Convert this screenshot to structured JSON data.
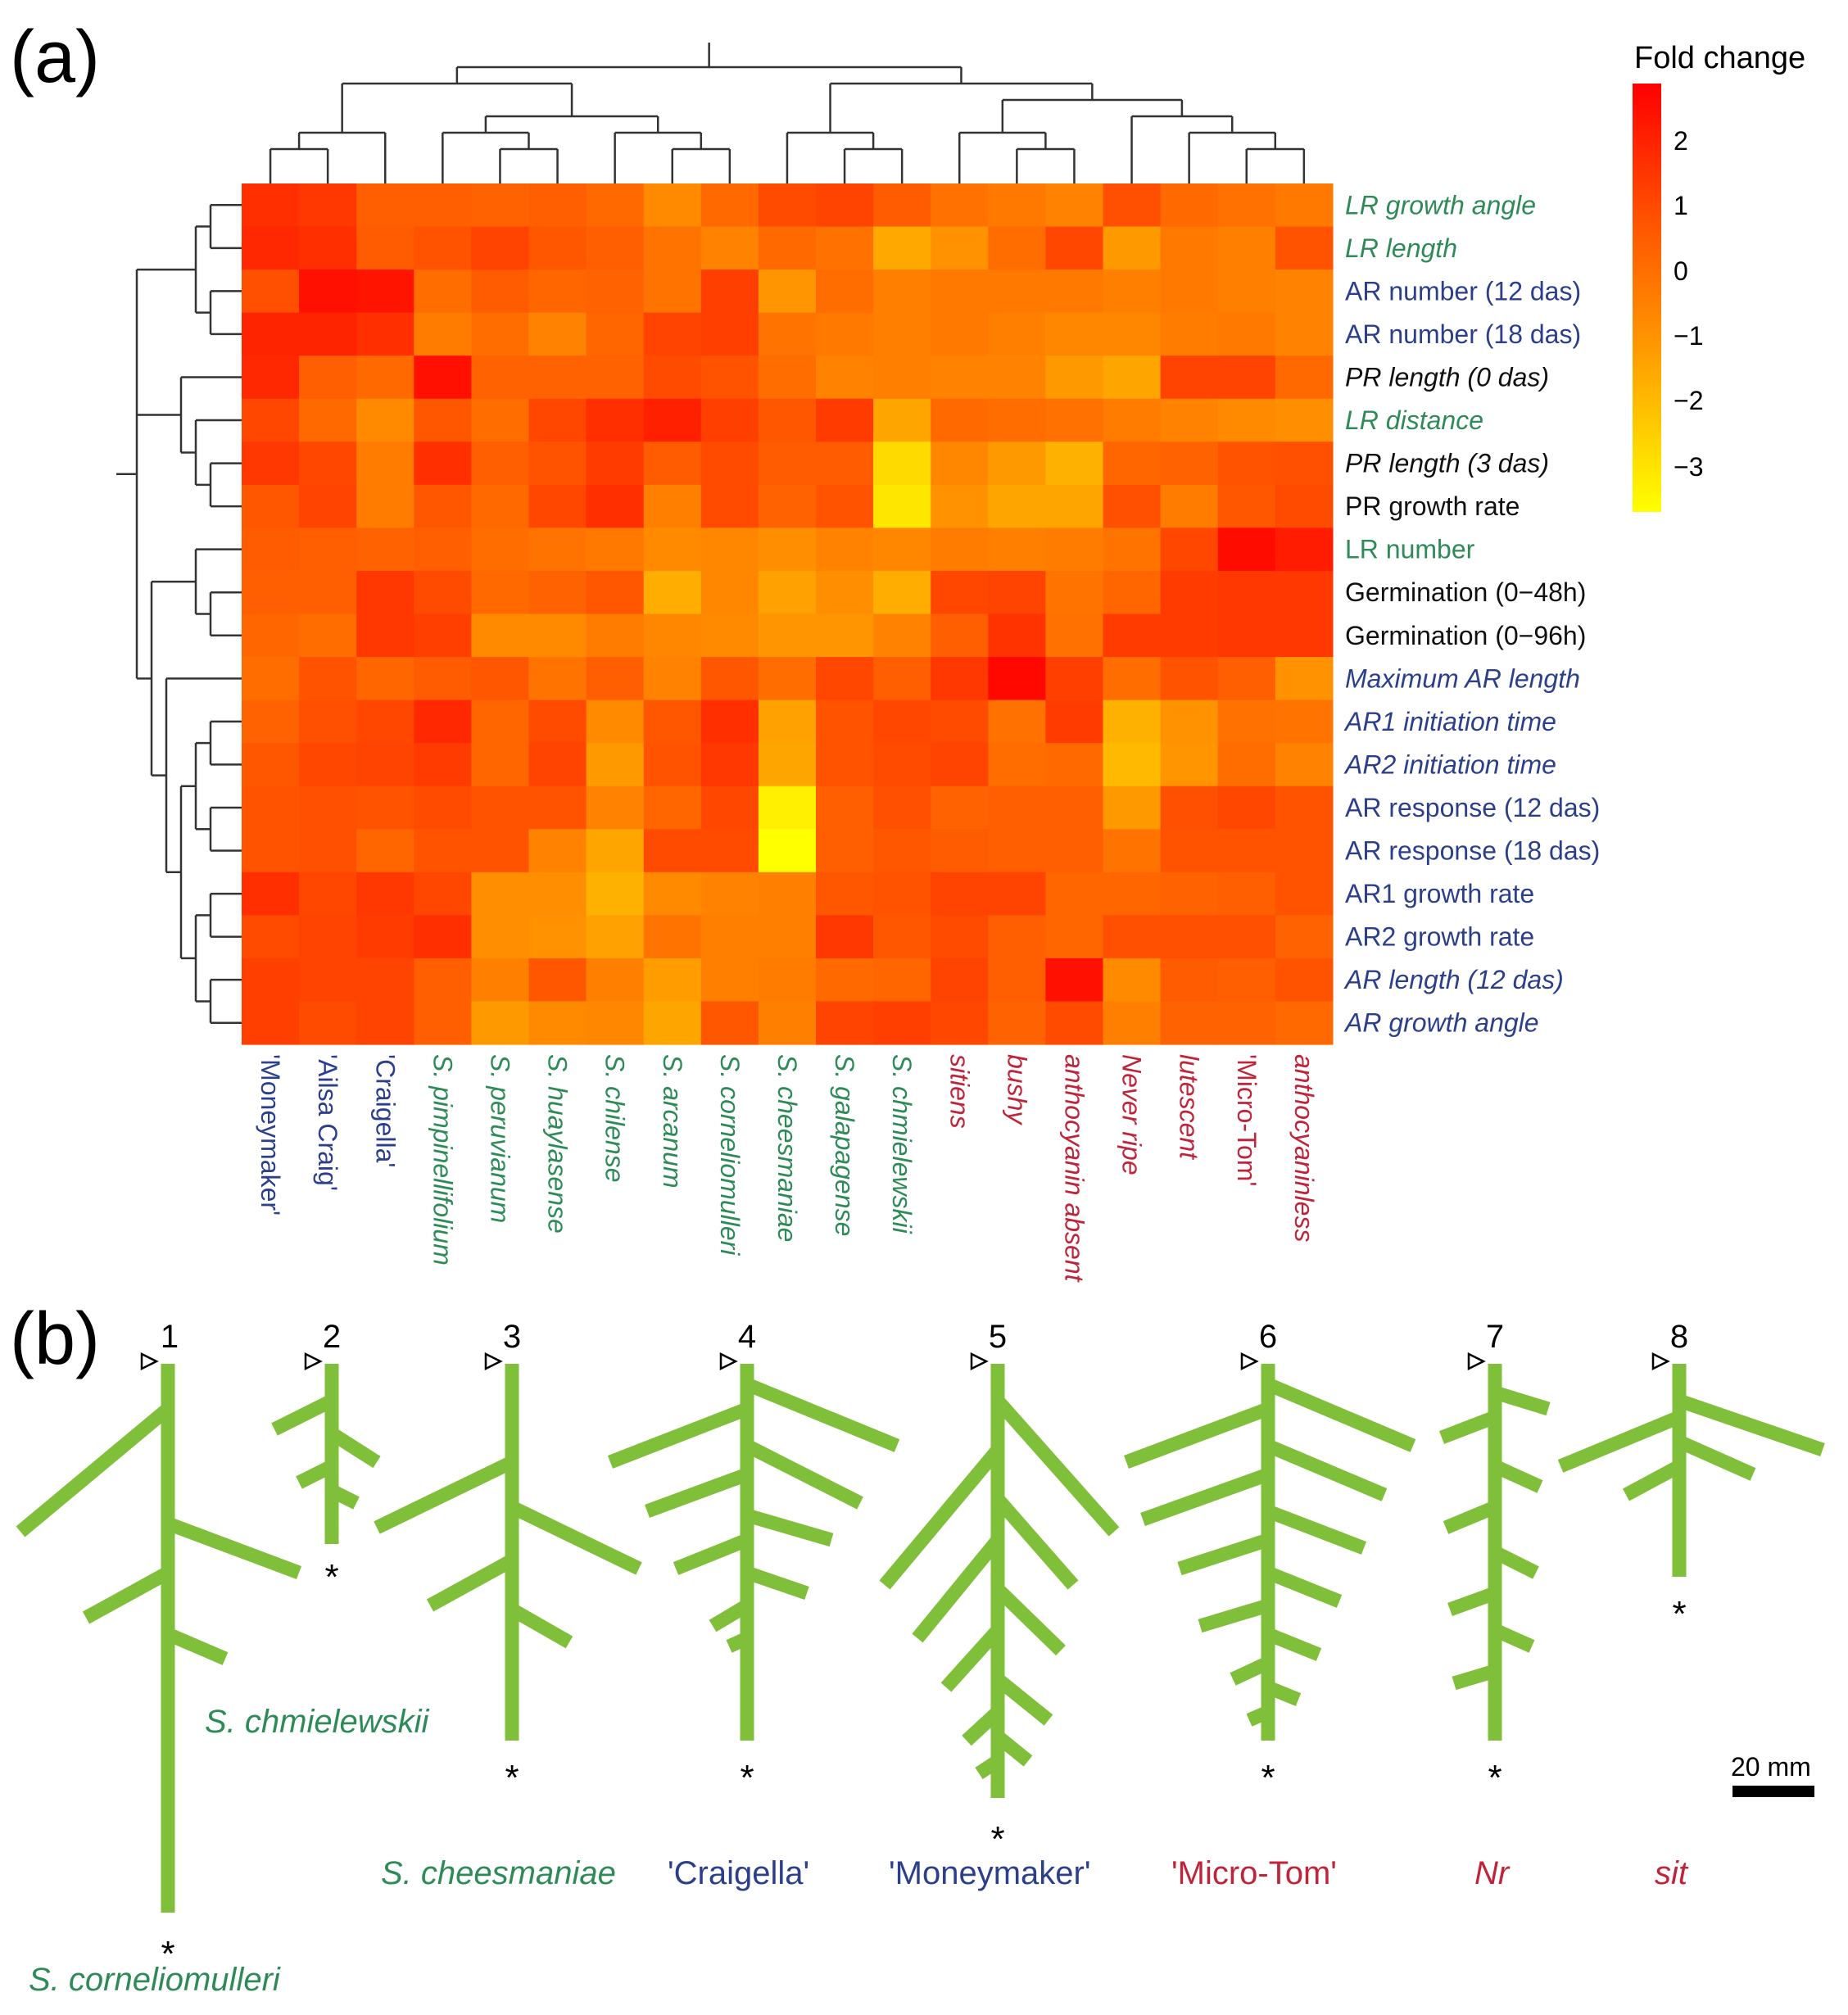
{
  "colors": {
    "wild": "#2e8b57",
    "cultivar": "#2b3f8c",
    "mutant": "#c0243a",
    "black": "#111111",
    "root": "#7fbf3a",
    "heat_low": "#ffff00",
    "heat_high": "#ff0000"
  },
  "panel_a": {
    "label": "(a)"
  },
  "panel_b": {
    "label": "(b)"
  },
  "chart_data": {
    "type": "heatmap",
    "legend": {
      "title": "Fold change",
      "ticks": [
        2,
        1,
        0,
        -1,
        -2,
        -3
      ],
      "ticks_text": [
        "2",
        "1",
        "0",
        "−1",
        "−2",
        "−3"
      ],
      "range": [
        -3.5,
        3
      ]
    },
    "rows": [
      {
        "label": "LR growth angle",
        "style": "italic",
        "color": "wild"
      },
      {
        "label": "LR length",
        "style": "italic",
        "color": "wild"
      },
      {
        "label": "AR number (12 das)",
        "style": "normal",
        "color": "cultivar"
      },
      {
        "label": "AR number (18 das)",
        "style": "normal",
        "color": "cultivar"
      },
      {
        "label": "PR length (0 das)",
        "style": "italic",
        "color": "black"
      },
      {
        "label": "LR distance",
        "style": "italic",
        "color": "wild"
      },
      {
        "label": "PR length (3 das)",
        "style": "italic",
        "color": "black"
      },
      {
        "label": "PR growth rate",
        "style": "normal",
        "color": "black"
      },
      {
        "label": "LR number",
        "style": "normal",
        "color": "wild"
      },
      {
        "label": "Germination (0−48h)",
        "style": "normal",
        "color": "black"
      },
      {
        "label": "Germination (0−96h)",
        "style": "normal",
        "color": "black"
      },
      {
        "label": "Maximum AR length",
        "style": "italic",
        "color": "cultivar"
      },
      {
        "label": "AR1 initiation time",
        "style": "italic",
        "color": "cultivar"
      },
      {
        "label": "AR2 initiation time",
        "style": "italic",
        "color": "cultivar"
      },
      {
        "label": "AR response (12 das)",
        "style": "normal",
        "color": "cultivar"
      },
      {
        "label": "AR response (18 das)",
        "style": "normal",
        "color": "cultivar"
      },
      {
        "label": "AR1 growth rate",
        "style": "normal",
        "color": "cultivar"
      },
      {
        "label": "AR2 growth rate",
        "style": "normal",
        "color": "cultivar"
      },
      {
        "label": "AR length (12 das)",
        "style": "italic",
        "color": "cultivar"
      },
      {
        "label": "AR growth angle",
        "style": "italic",
        "color": "cultivar"
      }
    ],
    "columns": [
      {
        "label": "'Moneymaker'",
        "style": "normal",
        "color": "cultivar"
      },
      {
        "label": "'Ailsa Craig'",
        "style": "normal",
        "color": "cultivar"
      },
      {
        "label": "'Craigella'",
        "style": "normal",
        "color": "cultivar"
      },
      {
        "label": "S. pimpinellifolium",
        "style": "italic",
        "color": "wild"
      },
      {
        "label": "S. peruvianum",
        "style": "italic",
        "color": "wild"
      },
      {
        "label": "S. huaylasense",
        "style": "italic",
        "color": "wild"
      },
      {
        "label": "S. chilense",
        "style": "italic",
        "color": "wild"
      },
      {
        "label": "S. arcanum",
        "style": "italic",
        "color": "wild"
      },
      {
        "label": "S. corneliomulleri",
        "style": "italic",
        "color": "wild"
      },
      {
        "label": "S. cheesmaniae",
        "style": "italic",
        "color": "wild"
      },
      {
        "label": "S. galapagense",
        "style": "italic",
        "color": "wild"
      },
      {
        "label": "S. chmielewskii",
        "style": "italic",
        "color": "wild"
      },
      {
        "label": "sitiens",
        "style": "italic",
        "color": "mutant"
      },
      {
        "label": "bushy",
        "style": "italic",
        "color": "mutant"
      },
      {
        "label": "anthocyanin absent",
        "style": "italic",
        "color": "mutant"
      },
      {
        "label": "Never ripe",
        "style": "italic",
        "color": "mutant"
      },
      {
        "label": "lutescent",
        "style": "italic",
        "color": "mutant"
      },
      {
        "label": "'Micro-Tom'",
        "style": "normal",
        "color": "mutant"
      },
      {
        "label": "anthocyaninless",
        "style": "italic",
        "color": "mutant"
      }
    ],
    "values": [
      [
        1.8,
        1.6,
        0.6,
        0.6,
        0.5,
        0.6,
        0.3,
        -0.6,
        0.3,
        1.1,
        1.3,
        0.7,
        0.1,
        -0.1,
        -0.4,
        1.0,
        0.3,
        0.1,
        -0.1
      ],
      [
        2.0,
        1.8,
        0.7,
        0.9,
        1.3,
        0.8,
        0.6,
        0.0,
        -0.4,
        0.3,
        0.1,
        -1.4,
        -0.8,
        0.2,
        1.2,
        -1.0,
        -0.1,
        -0.3,
        0.9
      ],
      [
        1.0,
        2.6,
        2.5,
        0.2,
        0.7,
        0.4,
        0.5,
        0.0,
        1.4,
        -0.9,
        0.2,
        -0.3,
        -0.1,
        -0.1,
        -0.1,
        -0.3,
        -0.1,
        -0.3,
        -0.4
      ],
      [
        2.1,
        2.1,
        1.8,
        -0.2,
        0.2,
        -0.4,
        0.4,
        1.3,
        1.4,
        0.0,
        -0.1,
        -0.3,
        -0.1,
        -0.3,
        -0.5,
        -0.5,
        -0.2,
        -0.1,
        -0.4
      ],
      [
        2.0,
        0.6,
        0.3,
        2.6,
        0.5,
        0.5,
        0.5,
        1.1,
        0.9,
        0.2,
        -0.4,
        -0.3,
        -0.4,
        -0.4,
        -1.0,
        -1.3,
        1.3,
        1.3,
        0.3
      ],
      [
        1.2,
        0.3,
        -0.6,
        0.8,
        0.2,
        1.2,
        1.8,
        2.2,
        1.4,
        0.8,
        1.5,
        -1.3,
        0.3,
        0.2,
        0.1,
        -0.2,
        -0.4,
        -0.6,
        -0.7
      ],
      [
        1.6,
        1.2,
        -0.2,
        1.8,
        0.6,
        0.9,
        1.5,
        0.7,
        1.1,
        0.7,
        0.7,
        -2.6,
        -0.5,
        -1.0,
        -1.6,
        0.4,
        0.5,
        0.9,
        1.0
      ],
      [
        0.8,
        1.3,
        -0.2,
        0.8,
        0.3,
        1.2,
        1.8,
        -0.3,
        1.1,
        0.5,
        0.9,
        -2.9,
        -0.8,
        -1.3,
        -1.3,
        1.0,
        -0.2,
        0.8,
        1.1
      ],
      [
        0.7,
        0.6,
        0.5,
        0.6,
        0.2,
        0.0,
        -0.1,
        -0.6,
        -0.5,
        -0.7,
        -0.4,
        -0.5,
        -0.2,
        -0.3,
        -0.2,
        0.0,
        1.2,
        2.7,
        2.3
      ],
      [
        0.6,
        0.6,
        1.6,
        1.1,
        0.3,
        0.5,
        0.8,
        -1.5,
        -0.5,
        -1.2,
        -0.7,
        -1.5,
        1.2,
        1.3,
        0.0,
        0.4,
        1.5,
        1.6,
        1.6
      ],
      [
        0.4,
        0.2,
        1.6,
        1.4,
        -0.6,
        -0.6,
        -0.2,
        -0.5,
        -0.6,
        -0.9,
        -0.9,
        -0.4,
        0.6,
        1.7,
        0.1,
        1.5,
        1.5,
        1.6,
        1.6
      ],
      [
        0.2,
        0.9,
        0.4,
        0.7,
        0.8,
        0.0,
        0.6,
        -0.4,
        0.8,
        0.2,
        1.2,
        0.6,
        1.6,
        2.8,
        1.4,
        0.2,
        0.9,
        0.6,
        -0.8
      ],
      [
        0.5,
        1.0,
        1.2,
        2.0,
        0.4,
        1.1,
        -0.6,
        0.8,
        1.8,
        -1.2,
        0.9,
        1.2,
        1.1,
        0.1,
        1.5,
        -1.6,
        -0.8,
        0.1,
        0.0
      ],
      [
        0.8,
        1.2,
        1.3,
        1.5,
        0.4,
        1.3,
        -1.0,
        0.9,
        1.6,
        -1.3,
        0.9,
        1.1,
        1.3,
        0.2,
        0.3,
        -1.8,
        -0.9,
        0.2,
        -0.4
      ],
      [
        0.9,
        1.0,
        0.9,
        1.1,
        0.9,
        0.9,
        -0.4,
        0.4,
        1.2,
        -3.1,
        0.6,
        1.0,
        0.5,
        0.6,
        0.6,
        -1.0,
        1.0,
        1.2,
        0.9
      ],
      [
        0.9,
        1.0,
        0.4,
        0.9,
        0.9,
        -0.4,
        -1.3,
        1.1,
        1.1,
        -3.5,
        0.6,
        0.8,
        0.7,
        0.6,
        0.6,
        0.0,
        0.9,
        0.9,
        0.9
      ],
      [
        1.8,
        1.2,
        1.6,
        1.2,
        -0.7,
        -0.7,
        -1.6,
        -0.6,
        -0.4,
        -0.3,
        0.8,
        0.9,
        1.3,
        1.3,
        0.4,
        0.4,
        0.5,
        0.6,
        0.9
      ],
      [
        1.1,
        1.3,
        1.5,
        1.8,
        -0.7,
        -0.8,
        -1.2,
        0.0,
        -0.3,
        -0.3,
        1.6,
        0.8,
        1.1,
        0.6,
        0.4,
        1.0,
        1.0,
        1.0,
        0.5
      ],
      [
        1.4,
        1.3,
        1.3,
        0.6,
        -0.3,
        0.8,
        -0.3,
        -1.1,
        -0.3,
        -0.2,
        0.3,
        0.4,
        1.3,
        0.6,
        2.6,
        -0.6,
        0.7,
        0.6,
        0.9
      ],
      [
        1.4,
        1.1,
        1.3,
        0.6,
        -1.0,
        -0.6,
        -0.5,
        -1.3,
        0.8,
        -0.3,
        1.3,
        1.4,
        1.2,
        0.5,
        1.1,
        -0.3,
        0.5,
        0.5,
        0.3
      ]
    ]
  },
  "roots": [
    {
      "number": "1",
      "name": "S. corneliomulleri",
      "name_style": "italic",
      "name_color": "wild",
      "star": "*"
    },
    {
      "number": "2",
      "name": "S. chmielewskii",
      "name_style": "italic",
      "name_color": "wild",
      "star": "*"
    },
    {
      "number": "3",
      "name": "S. cheesmaniae",
      "name_style": "italic",
      "name_color": "wild",
      "star": "*"
    },
    {
      "number": "4",
      "name": "'Craigella'",
      "name_style": "normal",
      "name_color": "cultivar",
      "star": "*"
    },
    {
      "number": "5",
      "name": "'Moneymaker'",
      "name_style": "normal",
      "name_color": "cultivar",
      "star": "*"
    },
    {
      "number": "6",
      "name": "'Micro-Tom'",
      "name_style": "normal",
      "name_color": "mutant",
      "star": "*"
    },
    {
      "number": "7",
      "name": "Nr",
      "name_style": "italic",
      "name_color": "mutant",
      "star": "*"
    },
    {
      "number": "8",
      "name": "sit",
      "name_style": "italic",
      "name_color": "mutant",
      "star": "*"
    }
  ],
  "scale_bar": {
    "label": "20 mm"
  }
}
